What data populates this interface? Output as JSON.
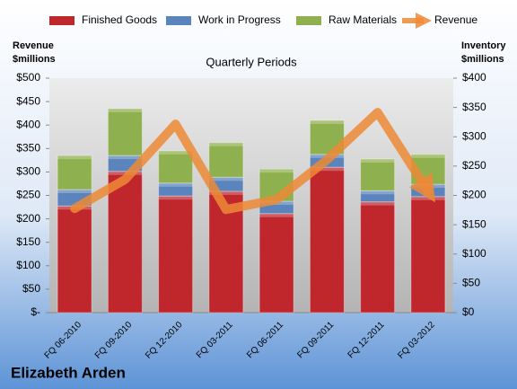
{
  "chart_data": {
    "type": "combo",
    "title": "Quarterly Periods",
    "y_label": [
      "Revenue",
      "$millions"
    ],
    "y2_label": [
      "Inventory",
      "$millions"
    ],
    "categories": [
      "FQ 06-2010",
      "FQ 09-2010",
      "FQ 12-2010",
      "FQ 03-2011",
      "FQ 06-2011",
      "FQ 09-2011",
      "FQ 12-2011",
      "FQ 03-2012"
    ],
    "series": [
      {
        "name": "Finished Goods",
        "color": "#c0272d",
        "type": "bar",
        "axis": "y2",
        "values": [
          182,
          241,
          199,
          207,
          169,
          248,
          189,
          198
        ]
      },
      {
        "name": "Work in Progress",
        "color": "#5b84bd",
        "type": "bar",
        "axis": "y2",
        "values": [
          28,
          27,
          22,
          24,
          21,
          22,
          19,
          21
        ]
      },
      {
        "name": "Raw Materials",
        "color": "#8fb04e",
        "type": "bar",
        "axis": "y2",
        "values": [
          58,
          80,
          55,
          59,
          55,
          58,
          54,
          51
        ]
      },
      {
        "name": "Revenue",
        "color": "#ed8a36",
        "type": "line",
        "axis": "y",
        "values": [
          222,
          284,
          402,
          220,
          241,
          326,
          427,
          259
        ]
      }
    ],
    "stacked": true,
    "ylim": [
      0,
      500
    ],
    "yticks": [
      {
        "value": 0,
        "label": "$-"
      },
      {
        "value": 50,
        "label": "$50"
      },
      {
        "value": 100,
        "label": "$100"
      },
      {
        "value": 150,
        "label": "$150"
      },
      {
        "value": 200,
        "label": "$200"
      },
      {
        "value": 250,
        "label": "$250"
      },
      {
        "value": 300,
        "label": "$300"
      },
      {
        "value": 350,
        "label": "$350"
      },
      {
        "value": 400,
        "label": "$400"
      },
      {
        "value": 450,
        "label": "$450"
      },
      {
        "value": 500,
        "label": "$500"
      }
    ],
    "y2lim": [
      0,
      400
    ],
    "y2ticks": [
      {
        "value": 0,
        "label": "$0"
      },
      {
        "value": 50,
        "label": "$50"
      },
      {
        "value": 100,
        "label": "$100"
      },
      {
        "value": 150,
        "label": "$150"
      },
      {
        "value": 200,
        "label": "$200"
      },
      {
        "value": 250,
        "label": "$250"
      },
      {
        "value": 300,
        "label": "$300"
      },
      {
        "value": 350,
        "label": "$350"
      },
      {
        "value": 400,
        "label": "$400"
      }
    ],
    "legend": "top"
  },
  "brand": "Elizabeth Arden"
}
